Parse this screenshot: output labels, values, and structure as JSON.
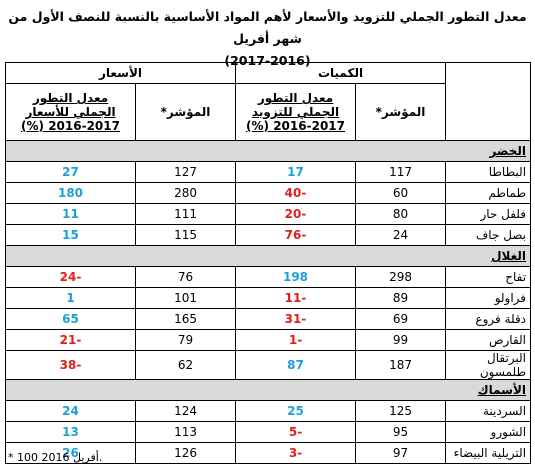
{
  "title": "معدل التطور الجملي للتزويد والأسعار لأهم المواد الأساسية بالنسبة للنصف الأول من شهر أفريل",
  "subtitle": "(2017-2016)",
  "table": {
    "group_headers": [
      "الكميات",
      "الأسعار"
    ],
    "column_headers": [
      "المؤشر*",
      "معدل التطور الجملي للتزويد 2017-2016 (%)",
      "المؤشر*",
      "معدل التطور الجملي للأسعار 2017-2016 (%)"
    ],
    "sections": [
      {
        "name": "الخضر",
        "rows": [
          [
            "البطاطا",
            117,
            17,
            127,
            27
          ],
          [
            "طماطم",
            60,
            -40,
            280,
            180
          ],
          [
            "فلفل حار",
            80,
            -20,
            111,
            11
          ],
          [
            "بصل جاف",
            24,
            -76,
            115,
            15
          ]
        ]
      },
      {
        "name": "الغلال",
        "rows": [
          [
            "تفاح",
            298,
            198,
            76,
            -24
          ],
          [
            "فراولو",
            89,
            -11,
            101,
            1
          ],
          [
            "دقلة فروع",
            69,
            -31,
            165,
            65
          ],
          [
            "القارص",
            99,
            -1,
            79,
            -21
          ],
          [
            "البرتقال طلمسون",
            187,
            87,
            62,
            -38
          ]
        ]
      },
      {
        "name": "الأسماك",
        "rows": [
          [
            "السردينة",
            125,
            25,
            124,
            24
          ],
          [
            "الشورو",
            95,
            -5,
            113,
            13
          ],
          [
            "التريلية البيضاء",
            97,
            -3,
            126,
            26
          ]
        ]
      }
    ]
  },
  "footnote": "* 100 أفريل 2016."
}
